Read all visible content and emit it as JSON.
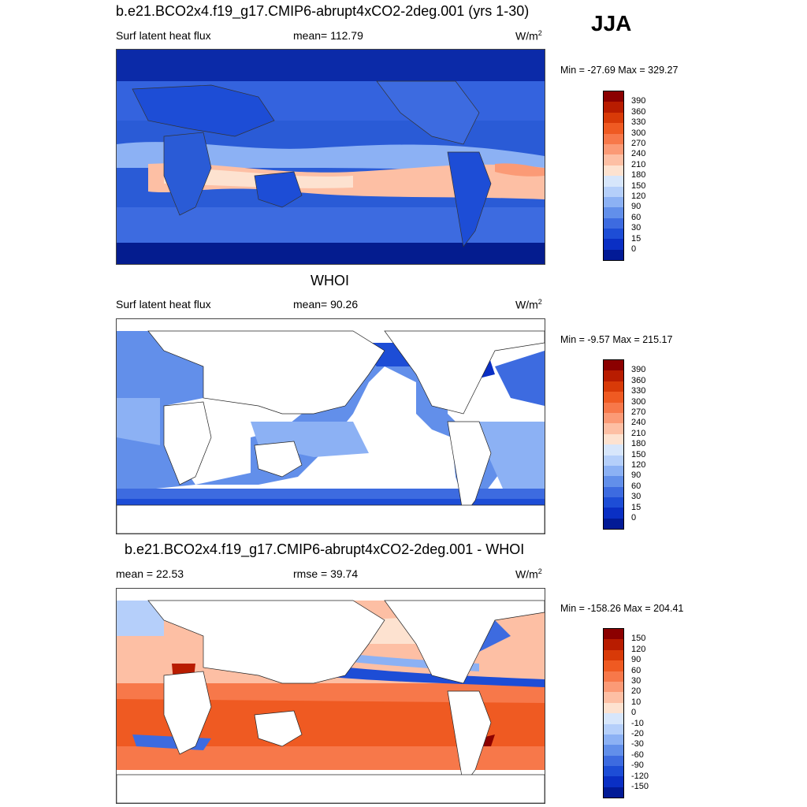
{
  "season": "JJA",
  "panels": [
    {
      "id": "model",
      "title": "b.e21.BCO2x4.f19_g17.CMIP6-abrupt4xCO2-2deg.001 (yrs 1-30)",
      "left_label": "Surf latent heat flux",
      "center_label": "mean= 112.79",
      "units": "W/m",
      "units_sup": "2",
      "minmax": "Min = -27.69 Max = 329.27",
      "colorbar_labels": [
        "390",
        "360",
        "330",
        "300",
        "270",
        "240",
        "210",
        "180",
        "150",
        "120",
        "90",
        "60",
        "30",
        "15",
        "0"
      ],
      "colorbar_colors": [
        "#8b0000",
        "#b81c00",
        "#d83a08",
        "#ef5a22",
        "#f7784a",
        "#fb9a76",
        "#fdbfa4",
        "#fde2d0",
        "#d7e6fb",
        "#b5cffa",
        "#8cb1f4",
        "#628fea",
        "#3d6be0",
        "#1d4dd6",
        "#0a2fc4",
        "#021a96"
      ]
    },
    {
      "id": "obs",
      "title": "WHOI",
      "left_label": "Surf latent heat flux",
      "center_label": "mean=  90.26",
      "units": "W/m",
      "units_sup": "2",
      "minmax": "Min =  -9.57 Max = 215.17",
      "colorbar_labels": [
        "390",
        "360",
        "330",
        "300",
        "270",
        "240",
        "210",
        "180",
        "150",
        "120",
        "90",
        "60",
        "30",
        "15",
        "0"
      ],
      "colorbar_colors": [
        "#8b0000",
        "#b81c00",
        "#d83a08",
        "#ef5a22",
        "#f7784a",
        "#fb9a76",
        "#fdbfa4",
        "#fde2d0",
        "#d7e6fb",
        "#b5cffa",
        "#8cb1f4",
        "#628fea",
        "#3d6be0",
        "#1d4dd6",
        "#0a2fc4",
        "#021a96"
      ]
    },
    {
      "id": "diff",
      "title": "b.e21.BCO2x4.f19_g17.CMIP6-abrupt4xCO2-2deg.001 - WHOI",
      "left_label": "mean =  22.53",
      "center_label": "rmse =  39.74",
      "units": "W/m",
      "units_sup": "2",
      "minmax": "Min = -158.26 Max = 204.41",
      "colorbar_labels": [
        "150",
        "120",
        "90",
        "60",
        "30",
        "20",
        "10",
        "0",
        "-10",
        "-20",
        "-30",
        "-60",
        "-90",
        "-120",
        "-150"
      ],
      "colorbar_colors": [
        "#8b0000",
        "#b81c00",
        "#d83a08",
        "#ef5a22",
        "#f7784a",
        "#fb9a76",
        "#fdbfa4",
        "#fde2d0",
        "#d7e6fb",
        "#b5cffa",
        "#8cb1f4",
        "#628fea",
        "#3d6be0",
        "#1d4dd6",
        "#0a2fc4",
        "#021a96"
      ]
    }
  ]
}
